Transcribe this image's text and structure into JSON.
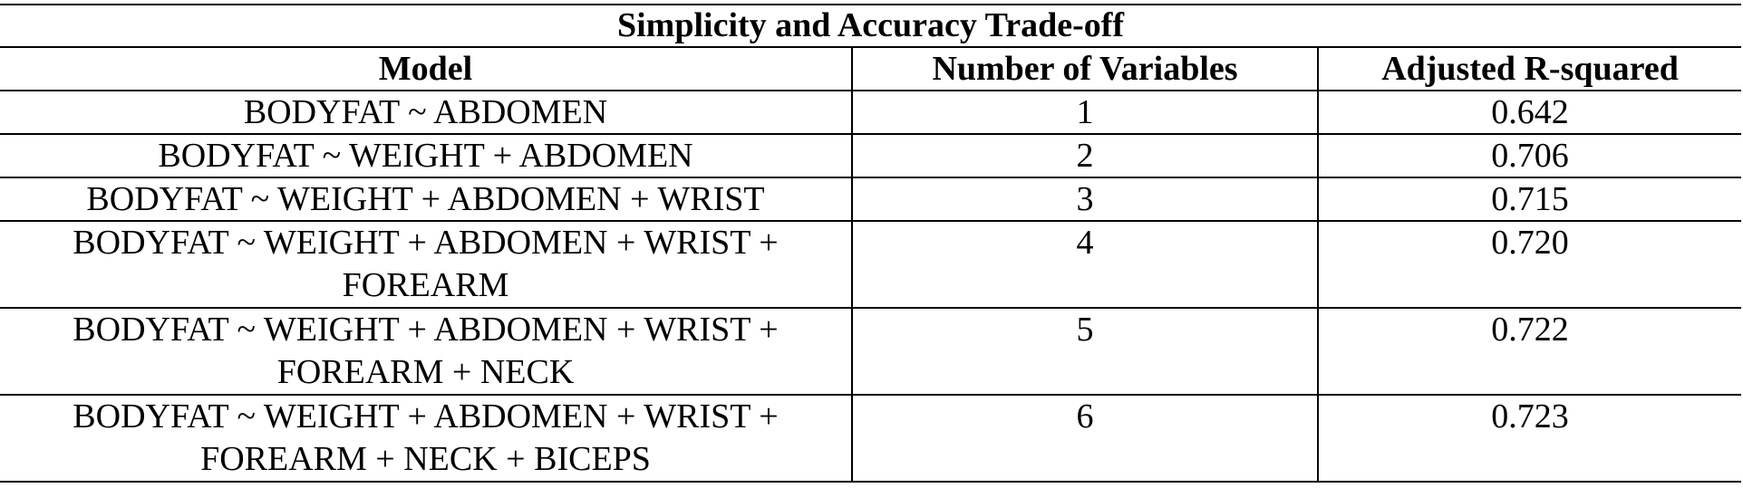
{
  "table": {
    "title": "Simplicity and Accuracy Trade-off",
    "headers": {
      "model": "Model",
      "num_vars": "Number of Variables",
      "adj_r2": "Adjusted R-squared"
    },
    "rows": [
      {
        "model": "BODYFAT ~ ABDOMEN",
        "num_vars": "1",
        "adj_r2": "0.642"
      },
      {
        "model": "BODYFAT ~ WEIGHT + ABDOMEN",
        "num_vars": "2",
        "adj_r2": "0.706"
      },
      {
        "model": "BODYFAT ~ WEIGHT + ABDOMEN + WRIST",
        "num_vars": "3",
        "adj_r2": "0.715"
      },
      {
        "model": "BODYFAT ~ WEIGHT + ABDOMEN + WRIST + FOREARM",
        "num_vars": "4",
        "adj_r2": "0.720"
      },
      {
        "model": "BODYFAT ~ WEIGHT + ABDOMEN + WRIST + FOREARM + NECK",
        "num_vars": "5",
        "adj_r2": "0.722"
      },
      {
        "model": "BODYFAT ~ WEIGHT + ABDOMEN + WRIST + FOREARM + NECK + BICEPS",
        "num_vars": "6",
        "adj_r2": "0.723"
      }
    ]
  }
}
